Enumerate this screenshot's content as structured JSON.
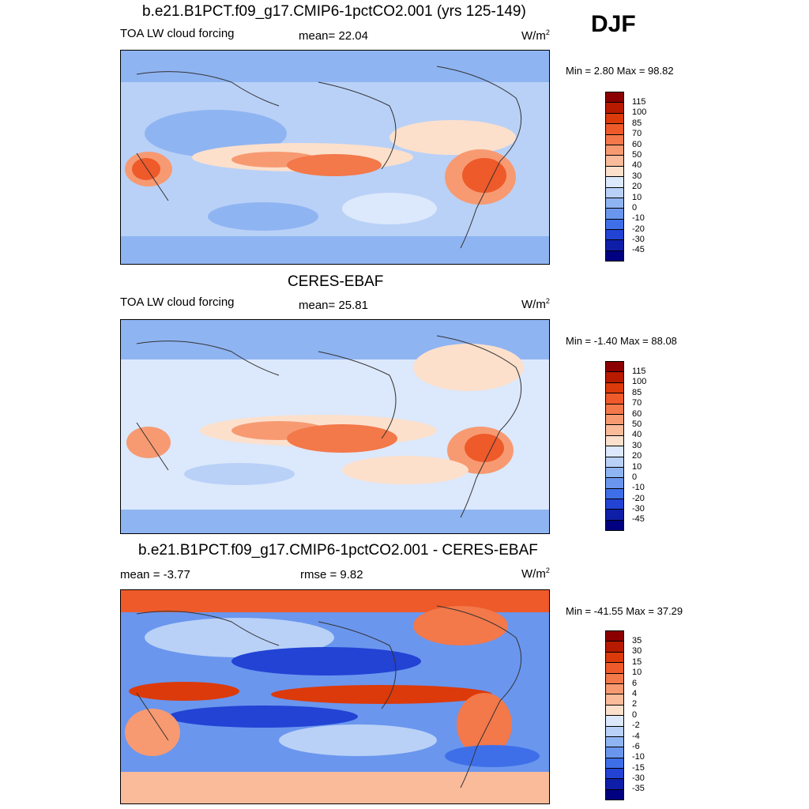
{
  "season": "DJF",
  "units_prefix": "W/m",
  "units_exp": "2",
  "panels": [
    {
      "title": "b.e21.B1PCT.f09_g17.CMIP6-1pctCO2.001 (yrs 125-149)",
      "left_label": "TOA LW cloud forcing",
      "center_label": "mean=  22.04",
      "minmax": "Min =   2.80 Max =  98.82"
    },
    {
      "title": "CERES-EBAF",
      "left_label": "TOA LW cloud forcing",
      "center_label": "mean=  25.81",
      "minmax": "Min =  -1.40 Max =  88.08"
    },
    {
      "title": "b.e21.B1PCT.f09_g17.CMIP6-1pctCO2.001 - CERES-EBAF",
      "left_label": "mean =  -3.77",
      "center_label": "rmse =   9.82",
      "minmax": "Min = -41.55 Max =  37.29"
    }
  ],
  "colorbars": {
    "field": {
      "labels": [
        "115",
        "100",
        "85",
        "70",
        "60",
        "50",
        "40",
        "30",
        "20",
        "10",
        "0",
        "-10",
        "-20",
        "-30",
        "-45"
      ],
      "colors": [
        "#8b0000",
        "#b81a00",
        "#dc3a0a",
        "#ee5a2a",
        "#f3784a",
        "#f79a72",
        "#f9bb9a",
        "#fce0cc",
        "#dce8fb",
        "#b9d1f7",
        "#8fb4f2",
        "#6a96ee",
        "#3f6fe8",
        "#2243d4",
        "#0f1ea8",
        "#000080"
      ]
    },
    "diff": {
      "labels": [
        "35",
        "30",
        "15",
        "10",
        "6",
        "4",
        "2",
        "0",
        "-2",
        "-4",
        "-6",
        "-10",
        "-15",
        "-30",
        "-35"
      ],
      "colors": [
        "#8b0000",
        "#b81a00",
        "#dc3a0a",
        "#ee5a2a",
        "#f3784a",
        "#f79a72",
        "#f9bb9a",
        "#fce0cc",
        "#dce8fb",
        "#b9d1f7",
        "#8fb4f2",
        "#6a96ee",
        "#3f6fe8",
        "#2243d4",
        "#0f1ea8",
        "#000080"
      ]
    }
  }
}
